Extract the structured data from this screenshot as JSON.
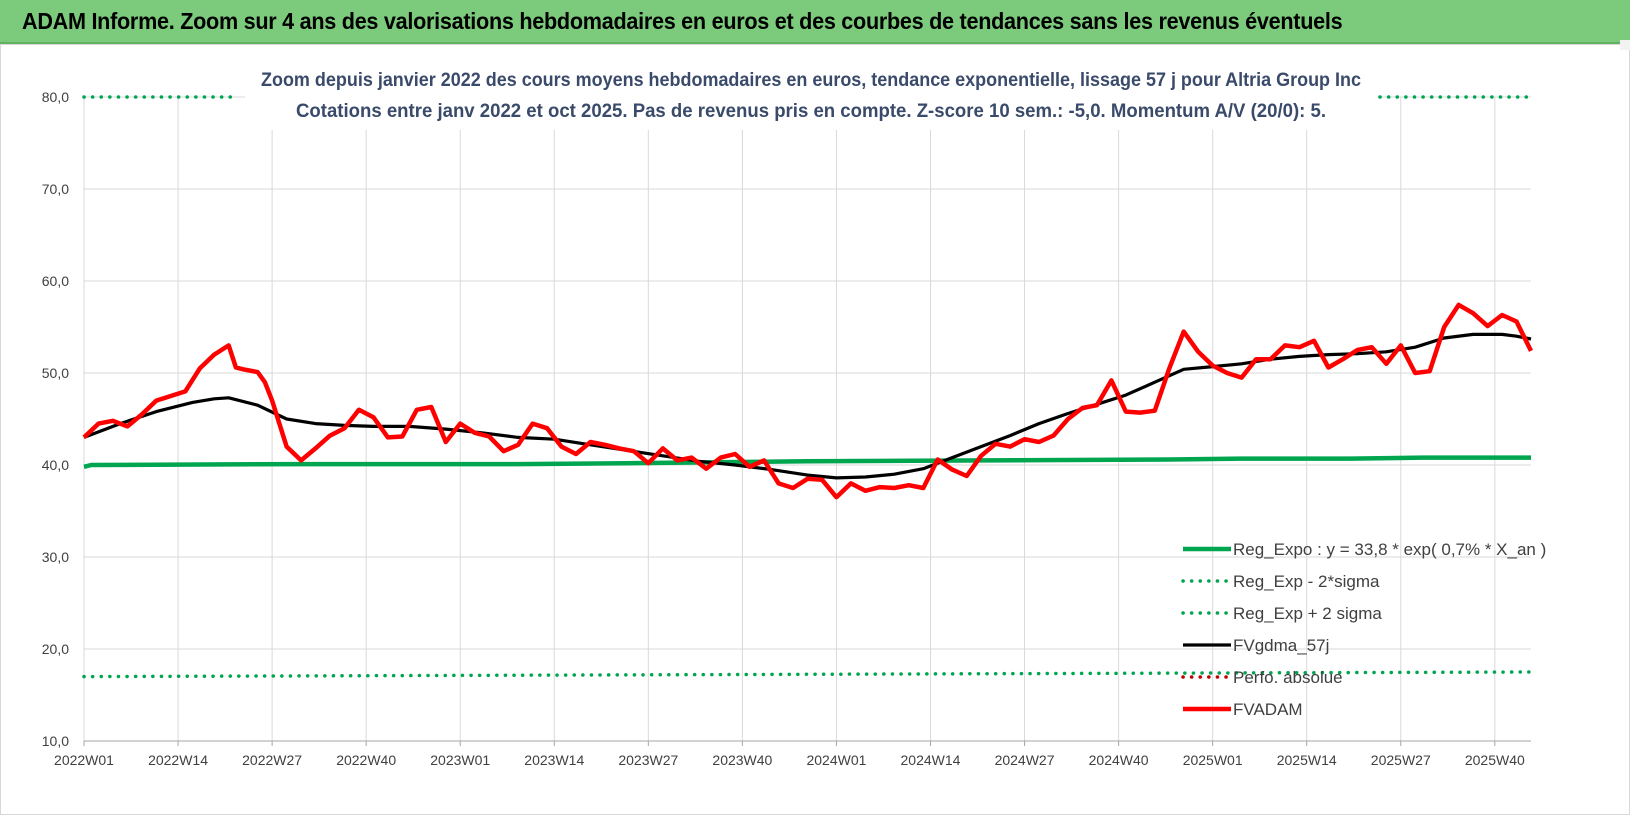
{
  "banner_title": "ADAM Informe. Zoom sur 4 ans des valorisations hebdomadaires en euros et des courbes de tendances sans les revenus éventuels",
  "colors": {
    "banner_bg": "#7ccb7c",
    "reg_expo": "#00a550",
    "sigma": "#00a550",
    "fvgdma": "#000000",
    "perfo": "#c00000",
    "fvadam": "#ff0000",
    "grid": "#d9d9d9",
    "axis_text": "#404040",
    "title_text": "#3a4a6a"
  },
  "chart_data": {
    "type": "line",
    "title": "Zoom depuis janvier 2022 des cours moyens hebdomadaires en euros, tendance exponentielle, lissage 57 j pour Altria Group Inc",
    "subtitle": "Cotations entre janv 2022 et oct 2025. Pas de revenus pris en compte. Z-score 10 sem.: -5,0. Momentum A/V (20/0): 5.",
    "xlabel": "",
    "ylabel": "",
    "ylim": [
      10,
      80
    ],
    "yticks": [
      "10,0",
      "20,0",
      "30,0",
      "40,0",
      "50,0",
      "60,0",
      "70,0",
      "80,0"
    ],
    "ytick_values": [
      10,
      20,
      30,
      40,
      50,
      60,
      70,
      80
    ],
    "xticks": [
      "2022W01",
      "2022W14",
      "2022W27",
      "2022W40",
      "2023W01",
      "2023W14",
      "2023W27",
      "2023W40",
      "2024W01",
      "2024W14",
      "2024W27",
      "2024W40",
      "2025W01",
      "2025W14",
      "2025W27",
      "2025W40"
    ],
    "xtick_index": [
      0,
      13,
      26,
      39,
      52,
      65,
      78,
      91,
      104,
      117,
      130,
      143,
      156,
      169,
      182,
      195
    ],
    "x_count": 201,
    "grid": true,
    "legend_position": "bottom-right",
    "series": [
      {
        "name": "Reg_Expo : y = 33,8 * exp( 0,7% * X_an )",
        "style": "solid-thick",
        "x": [
          0,
          1,
          30,
          60,
          75,
          100,
          125,
          150,
          160,
          175,
          185,
          200
        ],
        "y": [
          39.8,
          40.0,
          40.1,
          40.1,
          40.2,
          40.4,
          40.5,
          40.6,
          40.7,
          40.7,
          40.8,
          40.8
        ]
      },
      {
        "name": "Reg_Exp - 2*sigma",
        "style": "dotted",
        "x": [
          0,
          200
        ],
        "y": [
          17.0,
          17.5
        ]
      },
      {
        "name": "Reg_Exp + 2 sigma",
        "style": "dotted",
        "x": [
          0,
          21,
          172,
          200
        ],
        "y": [
          80.0,
          80.0,
          80.0,
          80.0
        ],
        "hidden_x_range": [
          21,
          172
        ]
      },
      {
        "name": "FVgdma_57j",
        "style": "solid",
        "x": [
          0,
          5,
          10,
          15,
          18,
          20,
          24,
          28,
          32,
          36,
          40,
          45,
          50,
          55,
          60,
          65,
          70,
          75,
          80,
          85,
          90,
          95,
          100,
          104,
          108,
          112,
          116,
          120,
          124,
          128,
          132,
          136,
          140,
          144,
          148,
          152,
          156,
          160,
          164,
          168,
          172,
          176,
          180,
          184,
          188,
          192,
          196,
          198,
          200
        ],
        "y": [
          43.0,
          44.5,
          45.8,
          46.8,
          47.2,
          47.3,
          46.5,
          45.0,
          44.5,
          44.3,
          44.2,
          44.2,
          43.9,
          43.5,
          43.0,
          42.8,
          42.2,
          41.6,
          41.0,
          40.4,
          40.0,
          39.5,
          38.9,
          38.6,
          38.7,
          39.0,
          39.6,
          40.8,
          42.0,
          43.2,
          44.5,
          45.6,
          46.6,
          47.6,
          49.0,
          50.4,
          50.7,
          51.0,
          51.5,
          51.8,
          52.0,
          52.1,
          52.3,
          52.8,
          53.8,
          54.2,
          54.2,
          54.0,
          53.7
        ]
      },
      {
        "name": "Perfo. absolue",
        "style": "dotted",
        "x": [],
        "y": []
      },
      {
        "name": "FVADAM",
        "style": "solid-thick",
        "x": [
          0,
          2,
          4,
          6,
          8,
          10,
          12,
          14,
          16,
          18,
          20,
          21,
          22,
          24,
          25,
          26,
          28,
          30,
          32,
          34,
          36,
          38,
          40,
          42,
          44,
          46,
          48,
          50,
          52,
          54,
          56,
          58,
          60,
          62,
          64,
          66,
          68,
          70,
          72,
          74,
          76,
          78,
          80,
          82,
          84,
          86,
          88,
          90,
          92,
          94,
          96,
          98,
          100,
          102,
          104,
          106,
          108,
          110,
          112,
          114,
          116,
          118,
          120,
          122,
          124,
          126,
          128,
          130,
          132,
          134,
          136,
          138,
          140,
          142,
          144,
          146,
          148,
          150,
          152,
          154,
          156,
          158,
          160,
          162,
          164,
          166,
          168,
          170,
          172,
          174,
          176,
          178,
          180,
          182,
          184,
          186,
          188,
          190,
          192,
          194,
          196,
          198,
          200
        ],
        "y": [
          43.0,
          44.5,
          44.8,
          44.2,
          45.5,
          47.0,
          47.5,
          48.0,
          50.5,
          52.0,
          53.0,
          50.6,
          50.4,
          50.1,
          49.0,
          47.0,
          42.0,
          40.5,
          41.8,
          43.2,
          44.0,
          46.0,
          45.2,
          43.0,
          43.1,
          46.0,
          46.3,
          42.5,
          44.5,
          43.5,
          43.1,
          41.5,
          42.2,
          44.5,
          44.0,
          42.0,
          41.2,
          42.5,
          42.2,
          41.8,
          41.5,
          40.2,
          41.8,
          40.5,
          40.8,
          39.6,
          40.8,
          41.2,
          39.8,
          40.5,
          38.0,
          37.5,
          38.5,
          38.4,
          36.5,
          38.0,
          37.2,
          37.6,
          37.5,
          37.8,
          37.5,
          40.6,
          39.5,
          38.8,
          41.0,
          42.3,
          42.0,
          42.8,
          42.5,
          43.2,
          45.0,
          46.2,
          46.5,
          49.2,
          45.8,
          45.7,
          45.9,
          50.5,
          54.5,
          52.3,
          50.8,
          50.0,
          49.5,
          51.5,
          51.5,
          53.0,
          52.8,
          53.5,
          50.6,
          51.5,
          52.5,
          52.8,
          51.0,
          53.0,
          50.0,
          50.2,
          55.0,
          57.4,
          56.5,
          55.1,
          56.3,
          55.6,
          52.4
        ]
      }
    ]
  }
}
